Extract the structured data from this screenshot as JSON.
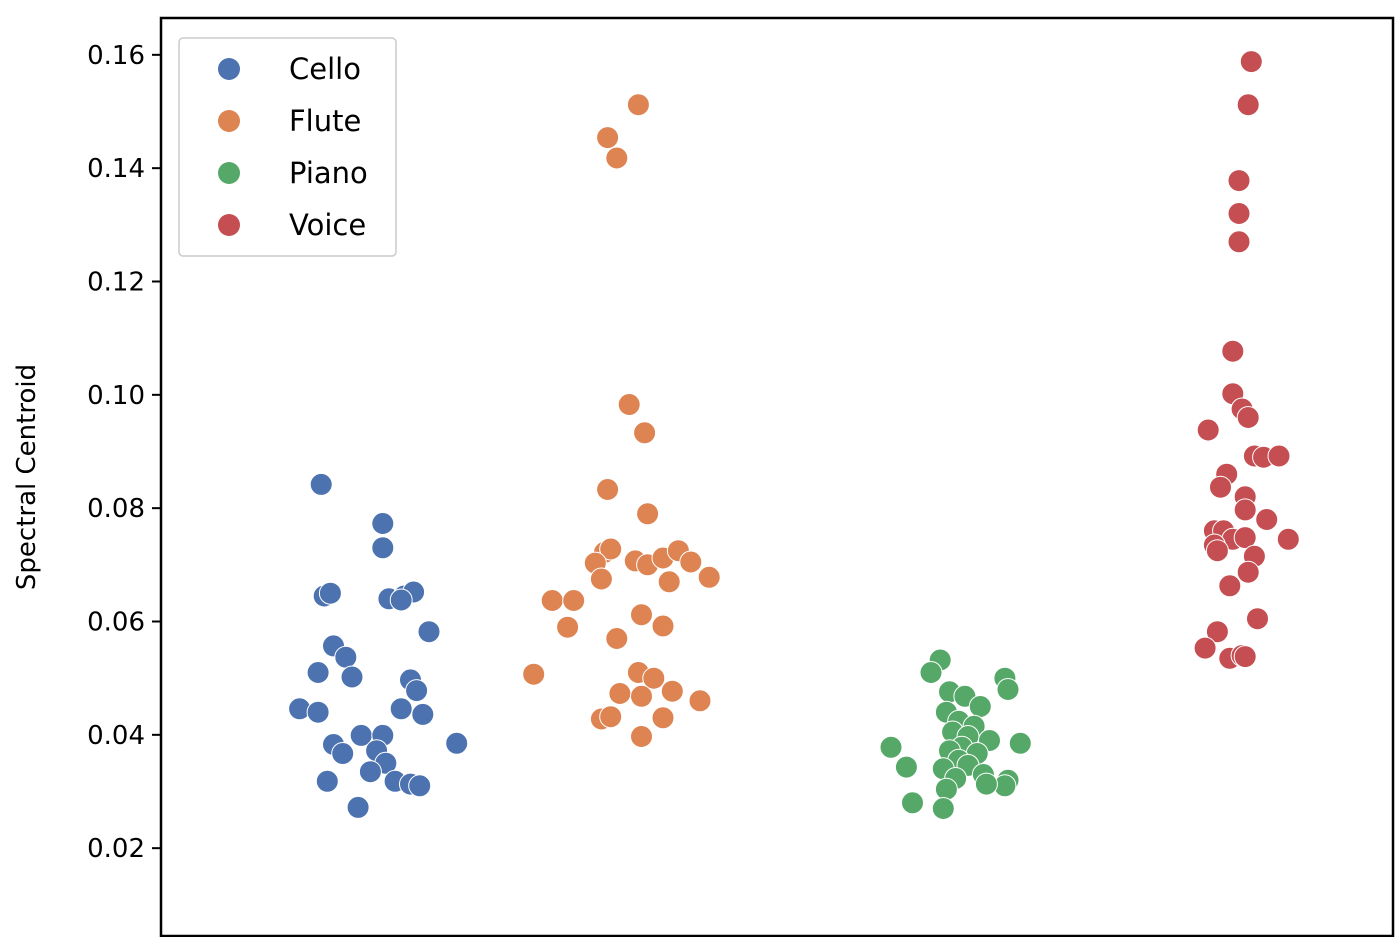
{
  "chart_data": {
    "type": "scatter",
    "ylabel": "Spectral Centroid",
    "xlabel": "",
    "yticks": [
      "0.02",
      "0.04",
      "0.06",
      "0.08",
      "0.10",
      "0.12",
      "0.14",
      "0.16"
    ],
    "ylim": [
      0.0045,
      0.1665
    ],
    "xlim": [
      -0.5,
      3.5
    ],
    "grid": false,
    "legend_position": "top-left",
    "series": [
      {
        "name": "Cello",
        "color": "#4c72b0",
        "points": [
          [
            0.02,
            0.0842
          ],
          [
            0.22,
            0.0773
          ],
          [
            0.22,
            0.073
          ],
          [
            0.03,
            0.0645
          ],
          [
            0.05,
            0.065
          ],
          [
            0.24,
            0.064
          ],
          [
            0.29,
            0.0645
          ],
          [
            0.32,
            0.0652
          ],
          [
            0.28,
            0.0638
          ],
          [
            0.37,
            0.0582
          ],
          [
            0.06,
            0.0557
          ],
          [
            0.1,
            0.0537
          ],
          [
            0.01,
            0.051
          ],
          [
            0.12,
            0.0502
          ],
          [
            0.31,
            0.0497
          ],
          [
            0.33,
            0.0478
          ],
          [
            -0.05,
            0.0446
          ],
          [
            0.01,
            0.044
          ],
          [
            0.28,
            0.0446
          ],
          [
            0.35,
            0.0436
          ],
          [
            0.06,
            0.0383
          ],
          [
            0.09,
            0.0367
          ],
          [
            0.15,
            0.0399
          ],
          [
            0.22,
            0.0399
          ],
          [
            0.2,
            0.0372
          ],
          [
            0.23,
            0.035
          ],
          [
            0.18,
            0.0335
          ],
          [
            0.04,
            0.0318
          ],
          [
            0.26,
            0.0318
          ],
          [
            0.31,
            0.0313
          ],
          [
            0.34,
            0.031
          ],
          [
            0.14,
            0.0272
          ],
          [
            0.46,
            0.0385
          ]
        ]
      },
      {
        "name": "Flute",
        "color": "#dd8452",
        "points": [
          [
            0.95,
            0.1454
          ],
          [
            0.98,
            0.1418
          ],
          [
            1.05,
            0.1512
          ],
          [
            1.02,
            0.0983
          ],
          [
            1.07,
            0.0933
          ],
          [
            0.95,
            0.0833
          ],
          [
            1.08,
            0.079
          ],
          [
            0.94,
            0.0722
          ],
          [
            0.96,
            0.0728
          ],
          [
            0.91,
            0.0703
          ],
          [
            1.04,
            0.0707
          ],
          [
            1.08,
            0.07
          ],
          [
            1.13,
            0.0712
          ],
          [
            1.18,
            0.0725
          ],
          [
            1.22,
            0.0705
          ],
          [
            0.93,
            0.0675
          ],
          [
            1.15,
            0.067
          ],
          [
            1.28,
            0.0678
          ],
          [
            0.77,
            0.0637
          ],
          [
            0.84,
            0.0637
          ],
          [
            1.06,
            0.0612
          ],
          [
            1.13,
            0.0592
          ],
          [
            0.82,
            0.059
          ],
          [
            0.98,
            0.057
          ],
          [
            0.71,
            0.0507
          ],
          [
            1.05,
            0.051
          ],
          [
            1.1,
            0.05
          ],
          [
            0.99,
            0.0473
          ],
          [
            1.06,
            0.0468
          ],
          [
            1.16,
            0.0477
          ],
          [
            1.25,
            0.046
          ],
          [
            0.93,
            0.0428
          ],
          [
            0.96,
            0.0432
          ],
          [
            1.13,
            0.043
          ],
          [
            1.06,
            0.0397
          ]
        ]
      },
      {
        "name": "Piano",
        "color": "#55a868",
        "points": [
          [
            2.03,
            0.0532
          ],
          [
            2.0,
            0.051
          ],
          [
            2.24,
            0.05
          ],
          [
            2.25,
            0.048
          ],
          [
            2.06,
            0.0476
          ],
          [
            2.11,
            0.0468
          ],
          [
            2.16,
            0.045
          ],
          [
            2.05,
            0.044
          ],
          [
            2.09,
            0.0424
          ],
          [
            2.14,
            0.0415
          ],
          [
            2.07,
            0.0405
          ],
          [
            2.12,
            0.0397
          ],
          [
            2.19,
            0.039
          ],
          [
            2.29,
            0.0385
          ],
          [
            2.1,
            0.0378
          ],
          [
            2.06,
            0.0372
          ],
          [
            2.15,
            0.0367
          ],
          [
            2.09,
            0.0355
          ],
          [
            2.12,
            0.0346
          ],
          [
            2.04,
            0.034
          ],
          [
            1.87,
            0.0378
          ],
          [
            1.92,
            0.0343
          ],
          [
            2.17,
            0.033
          ],
          [
            2.25,
            0.032
          ],
          [
            2.24,
            0.031
          ],
          [
            2.08,
            0.0323
          ],
          [
            2.18,
            0.0313
          ],
          [
            2.05,
            0.0304
          ],
          [
            1.94,
            0.028
          ],
          [
            2.04,
            0.027
          ]
        ]
      },
      {
        "name": "Voice",
        "color": "#c44e52",
        "points": [
          [
            3.04,
            0.1588
          ],
          [
            3.03,
            0.1512
          ],
          [
            3.0,
            0.1378
          ],
          [
            3.0,
            0.132
          ],
          [
            3.0,
            0.127
          ],
          [
            2.98,
            0.1077
          ],
          [
            2.98,
            0.1002
          ],
          [
            3.01,
            0.0975
          ],
          [
            3.03,
            0.096
          ],
          [
            2.9,
            0.0938
          ],
          [
            3.05,
            0.0892
          ],
          [
            3.08,
            0.089
          ],
          [
            3.13,
            0.0892
          ],
          [
            2.96,
            0.086
          ],
          [
            2.94,
            0.0837
          ],
          [
            3.02,
            0.082
          ],
          [
            3.02,
            0.0797
          ],
          [
            3.09,
            0.078
          ],
          [
            2.92,
            0.076
          ],
          [
            2.95,
            0.076
          ],
          [
            2.98,
            0.0745
          ],
          [
            3.02,
            0.0748
          ],
          [
            3.16,
            0.0745
          ],
          [
            2.92,
            0.0735
          ],
          [
            2.93,
            0.0725
          ],
          [
            3.05,
            0.0715
          ],
          [
            3.03,
            0.0687
          ],
          [
            2.97,
            0.0663
          ],
          [
            3.06,
            0.0605
          ],
          [
            2.93,
            0.0582
          ],
          [
            2.89,
            0.0553
          ],
          [
            2.97,
            0.0535
          ],
          [
            3.01,
            0.054
          ],
          [
            3.02,
            0.0538
          ]
        ]
      }
    ]
  }
}
